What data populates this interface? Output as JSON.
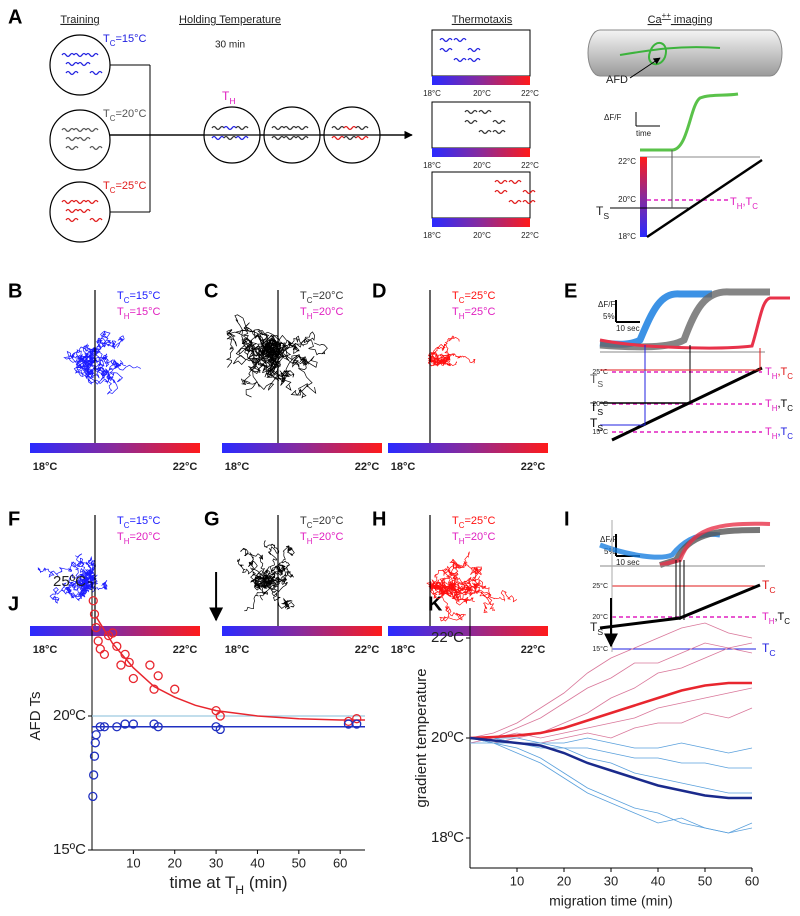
{
  "panel_labels": [
    "A",
    "B",
    "C",
    "D",
    "E",
    "F",
    "G",
    "H",
    "I",
    "J",
    "K"
  ],
  "training": {
    "title": "Training",
    "conditions": [
      [
        "T",
        {
          "sub": "C"
        },
        "=15°C"
      ],
      [
        "T",
        {
          "sub": "C"
        },
        "=20°C"
      ],
      [
        "T",
        {
          "sub": "C"
        },
        "=25°C"
      ]
    ]
  },
  "holding": {
    "title": "Holding Temperature",
    "duration": "30 min",
    "label": [
      "T",
      {
        "sub": "H"
      }
    ]
  },
  "thermotaxis": {
    "title": "Thermotaxis",
    "scale": [
      "18°C",
      "20°C",
      "22°C"
    ]
  },
  "imaging": {
    "title": [
      "Ca",
      {
        "sup": "++"
      },
      " imaging"
    ],
    "neuron": "AFD",
    "df": "ΔF/F",
    "time": "time",
    "temps": [
      "22°C",
      "20°C",
      "18°C"
    ],
    "ts": [
      "T",
      {
        "sub": "S"
      }
    ],
    "th_tc": [
      "T",
      {
        "sub": "H"
      },
      ",T",
      {
        "sub": "C"
      }
    ]
  },
  "tracks": [
    {
      "tc": [
        "T",
        {
          "sub": "C"
        },
        "=15°C"
      ],
      "th": [
        "T",
        {
          "sub": "H"
        },
        "=15°C"
      ],
      "scale": [
        "18°C",
        "22°C"
      ]
    },
    {
      "tc": [
        "T",
        {
          "sub": "C"
        },
        "=20°C"
      ],
      "th": [
        "T",
        {
          "sub": "H"
        },
        "=20°C"
      ],
      "scale": [
        "18°C",
        "22°C"
      ]
    },
    {
      "tc": [
        "T",
        {
          "sub": "C"
        },
        "=25°C"
      ],
      "th": [
        "T",
        {
          "sub": "H"
        },
        "=25°C"
      ],
      "scale": [
        "18°C",
        "22°C"
      ]
    },
    {
      "tc": [
        "T",
        {
          "sub": "C"
        },
        "=15°C"
      ],
      "th": [
        "T",
        {
          "sub": "H"
        },
        "=20°C"
      ],
      "scale": [
        "18°C",
        "22°C"
      ]
    },
    {
      "tc": [
        "T",
        {
          "sub": "C"
        },
        "=20°C"
      ],
      "th": [
        "T",
        {
          "sub": "H"
        },
        "=20°C"
      ],
      "scale": [
        "18°C",
        "22°C"
      ]
    },
    {
      "tc": [
        "T",
        {
          "sub": "C"
        },
        "=25°C"
      ],
      "th": [
        "T",
        {
          "sub": "H"
        },
        "=20°C"
      ],
      "scale": [
        "18°C",
        "22°C"
      ]
    }
  ],
  "e": {
    "df": "ΔF/F",
    "scale": "5%",
    "time": "10 sec",
    "temps": [
      "25°C",
      "20°C",
      "15°C"
    ],
    "ts": [
      "T",
      {
        "sub": "S"
      }
    ],
    "th_tc": [
      "T",
      {
        "sub": "H"
      },
      ",T",
      {
        "sub": "C"
      }
    ]
  },
  "i": {
    "df": "ΔF/F",
    "scale": "5%",
    "time": "10 sec",
    "temps": [
      "25°C",
      "20°C",
      "15°C"
    ],
    "ts": [
      "T",
      {
        "sub": "S"
      }
    ],
    "th_tc": [
      "T",
      {
        "sub": "H"
      },
      ",T",
      {
        "sub": "C"
      }
    ],
    "tc": [
      "T",
      {
        "sub": "C"
      }
    ]
  },
  "chart_data": [
    {
      "type": "scatter",
      "y_label": "AFD Ts",
      "x_label": [
        "time at T",
        {
          "sub": "H"
        },
        " (min)"
      ],
      "xlim": [
        0,
        66
      ],
      "ylim": [
        15,
        25
      ],
      "xticks": [
        10,
        20,
        30,
        40,
        50,
        60
      ],
      "yticks": [
        {
          "value": 15,
          "label": "15ºC"
        },
        {
          "value": 20,
          "label": "20ºC"
        },
        {
          "value": 25,
          "label": "25ºC"
        }
      ],
      "arrow_x": 30,
      "series": [
        {
          "color": "#9ecae1",
          "style": "line",
          "line_width": 1.2,
          "x": [
            0,
            66
          ],
          "values": [
            20,
            20
          ]
        },
        {
          "color": "#2030c0",
          "style": "line",
          "line_width": 1.5,
          "x": [
            0,
            66
          ],
          "values": [
            19.6,
            19.6
          ]
        },
        {
          "color": "#e8262e",
          "style": "line",
          "line_width": 1.5,
          "x": [
            1,
            5,
            10,
            15,
            20,
            25,
            30,
            40,
            50,
            60,
            66
          ],
          "values": [
            23.7,
            22.7,
            21.8,
            21.1,
            20.7,
            20.4,
            20.2,
            20.0,
            19.9,
            19.85,
            19.85
          ]
        },
        {
          "color": "#e8262e",
          "style": "markers",
          "x": [
            0.3,
            0.6,
            1,
            1.5,
            2,
            3,
            4,
            5,
            6,
            7,
            8,
            9,
            10,
            14,
            15,
            16,
            20,
            30,
            31,
            62,
            64
          ],
          "values": [
            24.3,
            23.8,
            23.3,
            22.8,
            22.5,
            22.3,
            23.0,
            23.1,
            22.6,
            21.9,
            22.3,
            22.0,
            21.4,
            21.9,
            21.0,
            21.5,
            21.0,
            20.2,
            20.0,
            19.8,
            19.9
          ]
        },
        {
          "color": "#2030c0",
          "style": "markers",
          "x": [
            0.2,
            0.4,
            0.6,
            0.8,
            1,
            2,
            3,
            6,
            8,
            10,
            15,
            16,
            30,
            31,
            62,
            64
          ],
          "values": [
            17.0,
            17.8,
            18.5,
            19.0,
            19.3,
            19.6,
            19.6,
            19.6,
            19.7,
            19.7,
            19.7,
            19.6,
            19.6,
            19.5,
            19.7,
            19.7
          ]
        }
      ]
    },
    {
      "type": "line",
      "y_label": "gradient temperature",
      "x_label": "migration time (min)",
      "xlim": [
        0,
        60
      ],
      "ylim": [
        17.4,
        22.6
      ],
      "xticks": [
        10,
        20,
        30,
        40,
        50,
        60
      ],
      "yticks": [
        {
          "value": 18,
          "label": "18ºC"
        },
        {
          "value": 20,
          "label": "20ºC"
        },
        {
          "value": 22,
          "label": "22ºC"
        }
      ],
      "arrow_x": 30,
      "x": [
        0,
        5,
        10,
        15,
        20,
        25,
        30,
        35,
        40,
        45,
        50,
        55,
        60
      ],
      "series": [
        {
          "color": "#d9779a",
          "line_width": 0.8,
          "values": [
            20,
            20.1,
            20.3,
            20.6,
            20.9,
            21.3,
            21.6,
            21.8,
            22.0,
            22.2,
            22.3,
            22.1,
            22.0
          ]
        },
        {
          "color": "#d9779a",
          "line_width": 0.8,
          "values": [
            20,
            19.9,
            20.0,
            20.1,
            20.3,
            20.5,
            20.8,
            21.0,
            21.3,
            21.4,
            21.6,
            21.8,
            21.7
          ]
        },
        {
          "color": "#d9779a",
          "line_width": 0.8,
          "values": [
            20,
            20.0,
            20.1,
            20.0,
            20.1,
            20.2,
            20.3,
            20.4,
            20.6,
            20.7,
            20.8,
            20.9,
            21.0
          ]
        },
        {
          "color": "#d9779a",
          "line_width": 0.8,
          "values": [
            19.9,
            20.0,
            20.2,
            20.4,
            20.7,
            21.0,
            21.2,
            21.5,
            21.5,
            21.7,
            21.9,
            21.8,
            21.9
          ]
        },
        {
          "color": "#d9779a",
          "line_width": 0.8,
          "values": [
            20,
            20.0,
            19.9,
            19.9,
            20.0,
            20.1,
            20.0,
            20.2,
            20.3,
            20.3,
            20.5,
            20.4,
            20.6
          ]
        },
        {
          "color": "#5aa0dc",
          "line_width": 0.8,
          "values": [
            20,
            19.9,
            19.8,
            19.6,
            19.3,
            19.0,
            18.8,
            18.6,
            18.5,
            18.3,
            18.2,
            18.1,
            18.2
          ]
        },
        {
          "color": "#5aa0dc",
          "line_width": 0.8,
          "values": [
            20,
            20.0,
            19.9,
            19.9,
            19.8,
            19.6,
            19.5,
            19.3,
            19.2,
            19.1,
            19.0,
            18.9,
            18.9
          ]
        },
        {
          "color": "#5aa0dc",
          "line_width": 0.8,
          "values": [
            20,
            19.9,
            19.9,
            19.8,
            19.8,
            19.8,
            19.7,
            19.6,
            19.6,
            19.5,
            19.5,
            19.4,
            19.4
          ]
        },
        {
          "color": "#5aa0dc",
          "line_width": 0.8,
          "values": [
            19.9,
            19.9,
            19.7,
            19.5,
            19.2,
            18.9,
            18.7,
            18.5,
            18.3,
            18.4,
            18.2,
            18.1,
            18.3
          ]
        },
        {
          "color": "#5aa0dc",
          "line_width": 0.8,
          "values": [
            20,
            20.0,
            20.0,
            19.9,
            19.9,
            20.0,
            19.9,
            19.8,
            19.8,
            19.9,
            19.8,
            19.7,
            19.8
          ]
        },
        {
          "color": "#e8262e",
          "line_width": 2.5,
          "values": [
            20,
            20.02,
            20.05,
            20.1,
            20.2,
            20.35,
            20.5,
            20.65,
            20.8,
            20.95,
            21.05,
            21.1,
            21.1
          ]
        },
        {
          "color": "#1a2a8c",
          "line_width": 2.5,
          "values": [
            20,
            19.95,
            19.9,
            19.85,
            19.7,
            19.5,
            19.35,
            19.2,
            19.05,
            18.95,
            18.85,
            18.8,
            18.8
          ]
        }
      ]
    }
  ]
}
